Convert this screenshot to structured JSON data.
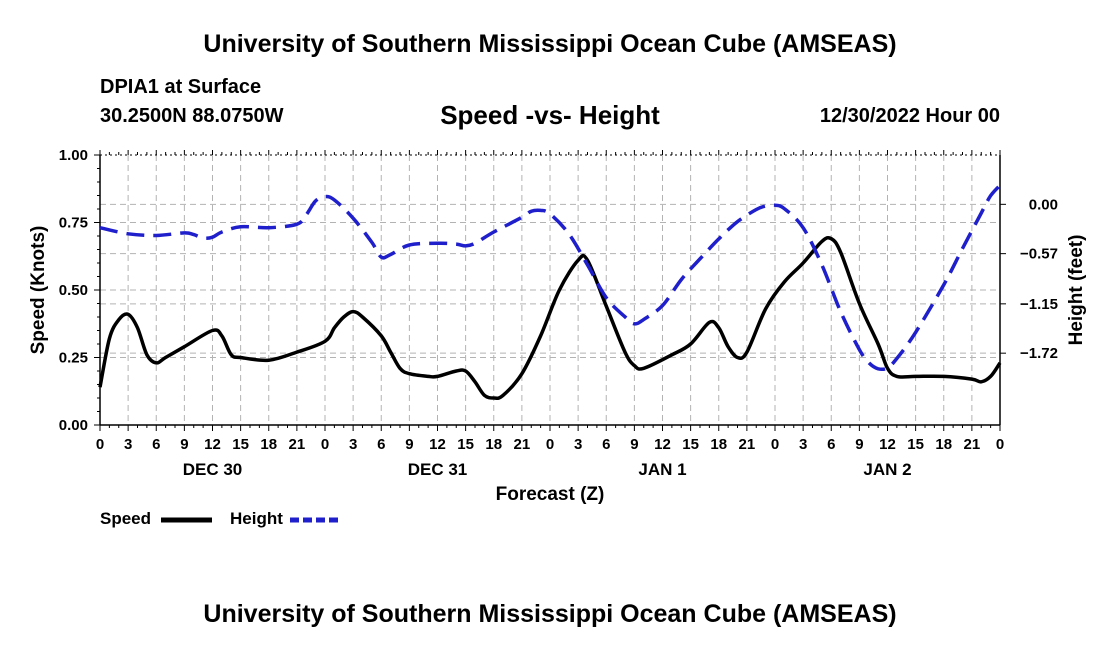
{
  "header": {
    "title": "University of Southern Mississippi Ocean Cube (AMSEAS)",
    "station": "DPIA1 at Surface",
    "coords": "30.2500N  88.0750W",
    "subtitle": "Speed -vs- Height",
    "datetime": "12/30/2022 Hour 00"
  },
  "footer": {
    "title": "University of Southern Mississippi Ocean Cube (AMSEAS)"
  },
  "legend": {
    "speed_label": "Speed",
    "height_label": "Height"
  },
  "colors": {
    "speed": "#000000",
    "height": "#1f1fcc",
    "grid": "#b3b3b3"
  },
  "chart_data": {
    "type": "line",
    "title": "Speed -vs- Height",
    "xlabel": "Forecast (Z)",
    "ylabel_left": "Speed (Knots)",
    "ylabel_right": "Height (feet)",
    "x_range": [
      0,
      96
    ],
    "x_tick_step": 3,
    "x_tick_labels": [
      "0",
      "3",
      "6",
      "9",
      "12",
      "15",
      "18",
      "21",
      "0",
      "3",
      "6",
      "9",
      "12",
      "15",
      "18",
      "21",
      "0",
      "3",
      "6",
      "9",
      "12",
      "15",
      "18",
      "21",
      "0",
      "3",
      "6",
      "9",
      "12",
      "15",
      "18",
      "21",
      "0"
    ],
    "day_labels": [
      {
        "label": "DEC 30",
        "hour": 12
      },
      {
        "label": "DEC 31",
        "hour": 36
      },
      {
        "label": "JAN 1",
        "hour": 60
      },
      {
        "label": "JAN 2",
        "hour": 84
      }
    ],
    "y_left": {
      "range": [
        0,
        1
      ],
      "ticks": [
        0,
        0.25,
        0.5,
        0.75,
        1.0
      ],
      "tick_labels": [
        "0.00",
        "0.25",
        "0.50",
        "0.75",
        "1.00"
      ]
    },
    "y_right": {
      "range": [
        -2.55,
        0.57
      ],
      "ticks": [
        0.0,
        -0.57,
        -1.15,
        -1.72
      ],
      "tick_labels": [
        "0.00",
        "−0.57",
        "−1.15",
        "−1.72"
      ]
    },
    "grid": true,
    "series": [
      {
        "name": "Speed",
        "axis": "left",
        "style": "solid",
        "points": [
          [
            0,
            0.14
          ],
          [
            1,
            0.32
          ],
          [
            2,
            0.39
          ],
          [
            3,
            0.41
          ],
          [
            4,
            0.36
          ],
          [
            5,
            0.26
          ],
          [
            6,
            0.23
          ],
          [
            7,
            0.25
          ],
          [
            9,
            0.29
          ],
          [
            12,
            0.35
          ],
          [
            13,
            0.33
          ],
          [
            14,
            0.26
          ],
          [
            15,
            0.25
          ],
          [
            18,
            0.24
          ],
          [
            21,
            0.27
          ],
          [
            24,
            0.31
          ],
          [
            25,
            0.36
          ],
          [
            26,
            0.4
          ],
          [
            27,
            0.42
          ],
          [
            28,
            0.4
          ],
          [
            30,
            0.33
          ],
          [
            31,
            0.27
          ],
          [
            32,
            0.21
          ],
          [
            33,
            0.19
          ],
          [
            35,
            0.18
          ],
          [
            36,
            0.18
          ],
          [
            38,
            0.2
          ],
          [
            39,
            0.2
          ],
          [
            40,
            0.16
          ],
          [
            41,
            0.11
          ],
          [
            42,
            0.1
          ],
          [
            43,
            0.11
          ],
          [
            45,
            0.19
          ],
          [
            47,
            0.33
          ],
          [
            49,
            0.5
          ],
          [
            51,
            0.61
          ],
          [
            52,
            0.61
          ],
          [
            54,
            0.44
          ],
          [
            56,
            0.27
          ],
          [
            57,
            0.22
          ],
          [
            58,
            0.21
          ],
          [
            61,
            0.26
          ],
          [
            63,
            0.3
          ],
          [
            65,
            0.38
          ],
          [
            66,
            0.36
          ],
          [
            67,
            0.29
          ],
          [
            68,
            0.25
          ],
          [
            69,
            0.27
          ],
          [
            71,
            0.43
          ],
          [
            73,
            0.53
          ],
          [
            75,
            0.6
          ],
          [
            77,
            0.68
          ],
          [
            78,
            0.69
          ],
          [
            79,
            0.64
          ],
          [
            81,
            0.45
          ],
          [
            83,
            0.3
          ],
          [
            84,
            0.21
          ],
          [
            85,
            0.18
          ],
          [
            87,
            0.18
          ],
          [
            90,
            0.18
          ],
          [
            93,
            0.17
          ],
          [
            94,
            0.16
          ],
          [
            95,
            0.18
          ],
          [
            96,
            0.23
          ]
        ]
      },
      {
        "name": "Height",
        "axis": "right",
        "style": "dashed",
        "points": [
          [
            0,
            -0.27
          ],
          [
            3,
            -0.34
          ],
          [
            6,
            -0.36
          ],
          [
            9,
            -0.33
          ],
          [
            10,
            -0.35
          ],
          [
            11,
            -0.39
          ],
          [
            12,
            -0.38
          ],
          [
            13,
            -0.32
          ],
          [
            15,
            -0.26
          ],
          [
            18,
            -0.27
          ],
          [
            21,
            -0.23
          ],
          [
            22,
            -0.12
          ],
          [
            23,
            0.04
          ],
          [
            24,
            0.09
          ],
          [
            25,
            0.05
          ],
          [
            27,
            -0.16
          ],
          [
            29,
            -0.44
          ],
          [
            30,
            -0.61
          ],
          [
            31,
            -0.58
          ],
          [
            33,
            -0.47
          ],
          [
            36,
            -0.45
          ],
          [
            38,
            -0.46
          ],
          [
            39,
            -0.48
          ],
          [
            40,
            -0.45
          ],
          [
            42,
            -0.32
          ],
          [
            45,
            -0.15
          ],
          [
            46,
            -0.08
          ],
          [
            47,
            -0.07
          ],
          [
            48,
            -0.11
          ],
          [
            50,
            -0.34
          ],
          [
            52,
            -0.7
          ],
          [
            54,
            -1.08
          ],
          [
            56,
            -1.3
          ],
          [
            57,
            -1.38
          ],
          [
            58,
            -1.33
          ],
          [
            60,
            -1.17
          ],
          [
            62,
            -0.87
          ],
          [
            64,
            -0.63
          ],
          [
            66,
            -0.4
          ],
          [
            68,
            -0.2
          ],
          [
            70,
            -0.06
          ],
          [
            71,
            -0.02
          ],
          [
            72,
            -0.01
          ],
          [
            73,
            -0.05
          ],
          [
            75,
            -0.27
          ],
          [
            77,
            -0.7
          ],
          [
            79,
            -1.24
          ],
          [
            81,
            -1.68
          ],
          [
            82,
            -1.83
          ],
          [
            83,
            -1.9
          ],
          [
            84,
            -1.89
          ],
          [
            85,
            -1.78
          ],
          [
            87,
            -1.48
          ],
          [
            90,
            -0.93
          ],
          [
            92,
            -0.51
          ],
          [
            94,
            -0.1
          ],
          [
            95,
            0.1
          ],
          [
            96,
            0.22
          ]
        ]
      }
    ]
  }
}
